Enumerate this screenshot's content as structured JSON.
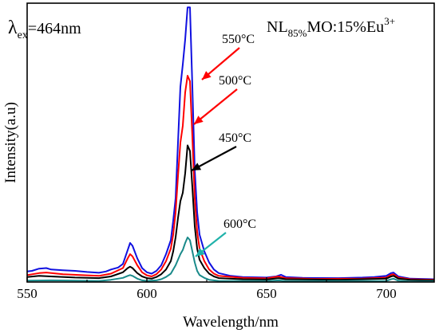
{
  "chart_data": {
    "type": "line",
    "title": "",
    "xlabel": "Wavelength/nm",
    "ylabel": "Intensity(a.u)",
    "xlim": [
      550,
      720
    ],
    "ylim": [
      0,
      1
    ],
    "y_ticks_shown": false,
    "x_ticks": [
      550,
      600,
      650,
      700
    ],
    "x_tick_labels": [
      "550",
      "600",
      "650",
      "700"
    ],
    "annotations": {
      "excitation": {
        "lambda": "λ",
        "sub": "ex",
        "value": "=464nm"
      },
      "sample": {
        "prefix": "NL",
        "sub": "85%",
        "middle": "MO:15%Eu",
        "sup": "3+"
      }
    },
    "series": [
      {
        "name": "550°C",
        "color": "#1010e0",
        "label": "550°C",
        "label_color": "#000000",
        "arrow_color": "#ff0000",
        "points": [
          [
            550,
            0.038
          ],
          [
            552,
            0.04
          ],
          [
            555,
            0.048
          ],
          [
            558,
            0.05
          ],
          [
            560,
            0.045
          ],
          [
            565,
            0.042
          ],
          [
            570,
            0.04
          ],
          [
            575,
            0.036
          ],
          [
            580,
            0.033
          ],
          [
            583,
            0.038
          ],
          [
            585,
            0.045
          ],
          [
            588,
            0.052
          ],
          [
            590,
            0.065
          ],
          [
            592,
            0.115
          ],
          [
            593,
            0.14
          ],
          [
            594,
            0.13
          ],
          [
            596,
            0.085
          ],
          [
            598,
            0.05
          ],
          [
            600,
            0.035
          ],
          [
            602,
            0.03
          ],
          [
            604,
            0.04
          ],
          [
            606,
            0.06
          ],
          [
            608,
            0.1
          ],
          [
            610,
            0.15
          ],
          [
            611,
            0.22
          ],
          [
            612,
            0.3
          ],
          [
            613,
            0.5
          ],
          [
            614,
            0.7
          ],
          [
            615,
            0.78
          ],
          [
            616,
            0.87
          ],
          [
            617,
            0.985
          ],
          [
            618,
            0.985
          ],
          [
            619,
            0.7
          ],
          [
            620,
            0.4
          ],
          [
            621,
            0.25
          ],
          [
            622,
            0.17
          ],
          [
            624,
            0.11
          ],
          [
            626,
            0.07
          ],
          [
            628,
            0.045
          ],
          [
            630,
            0.032
          ],
          [
            635,
            0.022
          ],
          [
            640,
            0.018
          ],
          [
            650,
            0.016
          ],
          [
            654,
            0.02
          ],
          [
            656,
            0.026
          ],
          [
            658,
            0.018
          ],
          [
            665,
            0.015
          ],
          [
            680,
            0.014
          ],
          [
            690,
            0.016
          ],
          [
            695,
            0.018
          ],
          [
            700,
            0.022
          ],
          [
            702,
            0.032
          ],
          [
            703,
            0.034
          ],
          [
            705,
            0.02
          ],
          [
            710,
            0.012
          ],
          [
            720,
            0.01
          ]
        ]
      },
      {
        "name": "500°C",
        "color": "#ff0000",
        "label": "500°C",
        "label_color": "#000000",
        "arrow_color": "#ff0000",
        "points": [
          [
            550,
            0.025
          ],
          [
            555,
            0.032
          ],
          [
            558,
            0.034
          ],
          [
            565,
            0.028
          ],
          [
            575,
            0.024
          ],
          [
            580,
            0.022
          ],
          [
            585,
            0.03
          ],
          [
            590,
            0.05
          ],
          [
            592,
            0.085
          ],
          [
            593,
            0.1
          ],
          [
            594,
            0.092
          ],
          [
            596,
            0.06
          ],
          [
            598,
            0.035
          ],
          [
            600,
            0.024
          ],
          [
            602,
            0.02
          ],
          [
            604,
            0.028
          ],
          [
            606,
            0.045
          ],
          [
            608,
            0.075
          ],
          [
            610,
            0.12
          ],
          [
            611,
            0.17
          ],
          [
            612,
            0.25
          ],
          [
            613,
            0.38
          ],
          [
            614,
            0.5
          ],
          [
            615,
            0.56
          ],
          [
            616,
            0.68
          ],
          [
            617,
            0.74
          ],
          [
            618,
            0.72
          ],
          [
            619,
            0.52
          ],
          [
            620,
            0.3
          ],
          [
            621,
            0.18
          ],
          [
            622,
            0.12
          ],
          [
            624,
            0.075
          ],
          [
            626,
            0.045
          ],
          [
            628,
            0.03
          ],
          [
            630,
            0.022
          ],
          [
            640,
            0.015
          ],
          [
            650,
            0.013
          ],
          [
            655,
            0.02
          ],
          [
            658,
            0.014
          ],
          [
            670,
            0.011
          ],
          [
            690,
            0.012
          ],
          [
            700,
            0.016
          ],
          [
            702,
            0.026
          ],
          [
            703,
            0.028
          ],
          [
            705,
            0.016
          ],
          [
            710,
            0.01
          ],
          [
            720,
            0.008
          ]
        ]
      },
      {
        "name": "450°C",
        "color": "#000000",
        "label": "450°C",
        "label_color": "#000000",
        "arrow_color": "#000000",
        "points": [
          [
            550,
            0.018
          ],
          [
            555,
            0.022
          ],
          [
            560,
            0.02
          ],
          [
            570,
            0.016
          ],
          [
            580,
            0.014
          ],
          [
            585,
            0.02
          ],
          [
            590,
            0.035
          ],
          [
            592,
            0.05
          ],
          [
            593,
            0.055
          ],
          [
            594,
            0.05
          ],
          [
            596,
            0.032
          ],
          [
            598,
            0.02
          ],
          [
            600,
            0.014
          ],
          [
            602,
            0.012
          ],
          [
            604,
            0.018
          ],
          [
            606,
            0.028
          ],
          [
            608,
            0.045
          ],
          [
            610,
            0.075
          ],
          [
            611,
            0.11
          ],
          [
            612,
            0.16
          ],
          [
            613,
            0.23
          ],
          [
            614,
            0.29
          ],
          [
            615,
            0.32
          ],
          [
            616,
            0.39
          ],
          [
            617,
            0.49
          ],
          [
            618,
            0.47
          ],
          [
            619,
            0.34
          ],
          [
            620,
            0.2
          ],
          [
            621,
            0.12
          ],
          [
            622,
            0.08
          ],
          [
            624,
            0.05
          ],
          [
            626,
            0.03
          ],
          [
            628,
            0.02
          ],
          [
            630,
            0.014
          ],
          [
            640,
            0.01
          ],
          [
            650,
            0.009
          ],
          [
            655,
            0.014
          ],
          [
            658,
            0.01
          ],
          [
            680,
            0.008
          ],
          [
            700,
            0.012
          ],
          [
            702,
            0.02
          ],
          [
            703,
            0.022
          ],
          [
            705,
            0.012
          ],
          [
            710,
            0.008
          ],
          [
            720,
            0.006
          ]
        ]
      },
      {
        "name": "600°C",
        "color": "#1a8a8a",
        "label": "600°C",
        "label_color": "#000000",
        "arrow_color": "#20b2aa",
        "points": [
          [
            550,
            0.005
          ],
          [
            560,
            0.006
          ],
          [
            570,
            0.005
          ],
          [
            580,
            0.004
          ],
          [
            585,
            0.008
          ],
          [
            590,
            0.015
          ],
          [
            592,
            0.022
          ],
          [
            593,
            0.025
          ],
          [
            594,
            0.022
          ],
          [
            596,
            0.012
          ],
          [
            598,
            0.006
          ],
          [
            600,
            0.004
          ],
          [
            604,
            0.006
          ],
          [
            606,
            0.01
          ],
          [
            608,
            0.018
          ],
          [
            610,
            0.03
          ],
          [
            612,
            0.06
          ],
          [
            613,
            0.08
          ],
          [
            614,
            0.1
          ],
          [
            615,
            0.115
          ],
          [
            616,
            0.14
          ],
          [
            617,
            0.16
          ],
          [
            618,
            0.15
          ],
          [
            619,
            0.11
          ],
          [
            620,
            0.07
          ],
          [
            621,
            0.04
          ],
          [
            622,
            0.025
          ],
          [
            624,
            0.015
          ],
          [
            626,
            0.008
          ],
          [
            630,
            0.004
          ],
          [
            650,
            0.003
          ],
          [
            655,
            0.006
          ],
          [
            658,
            0.003
          ],
          [
            700,
            0.004
          ],
          [
            702,
            0.01
          ],
          [
            703,
            0.012
          ],
          [
            705,
            0.005
          ],
          [
            710,
            0.002
          ],
          [
            720,
            0.002
          ]
        ]
      }
    ]
  }
}
